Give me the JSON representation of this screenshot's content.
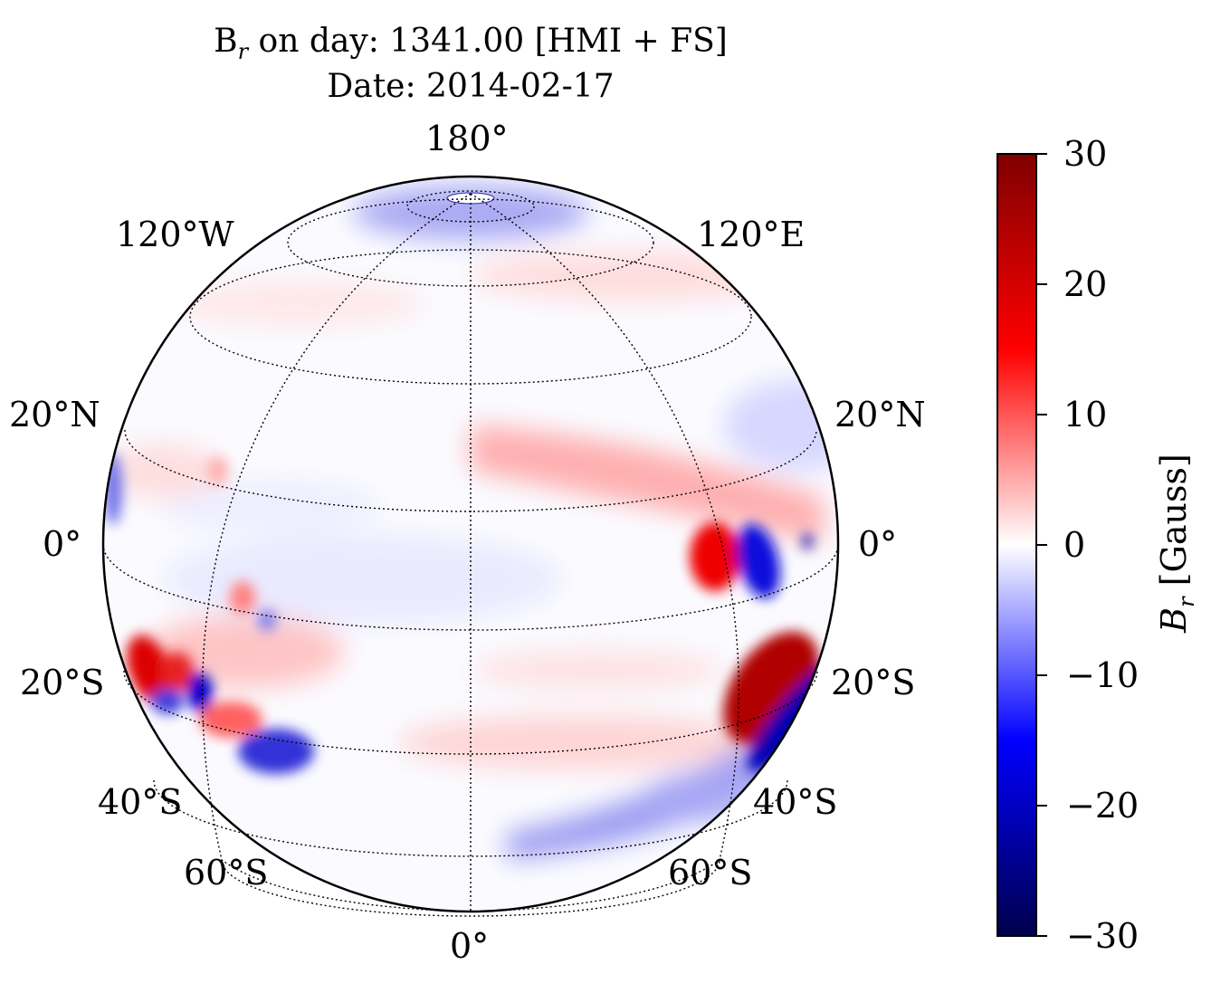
{
  "title": {
    "line1_var": "B",
    "line1_sub": "r",
    "line1_rest": " on day: 1341.00 [HMI + FS]",
    "line2": "Date: 2014-02-17"
  },
  "map": {
    "projection": "orthographic",
    "meridian_labels": {
      "top": "180°",
      "bottom": "0°",
      "upper_left": "120°W",
      "upper_right": "120°E"
    },
    "parallel_labels": [
      "20°N",
      "0°",
      "20°S",
      "40°S",
      "60°S"
    ],
    "colors": {
      "positive": "#cc0000",
      "negative": "#0000cc",
      "zero": "#ffffff"
    }
  },
  "colorbar": {
    "label_var": "B",
    "label_sub": "r",
    "label_unit": " [Gauss]",
    "min": -30,
    "max": 30,
    "ticks": [
      "30",
      "20",
      "10",
      "0",
      "−10",
      "−20",
      "−30"
    ],
    "colormap": "seismic"
  }
}
